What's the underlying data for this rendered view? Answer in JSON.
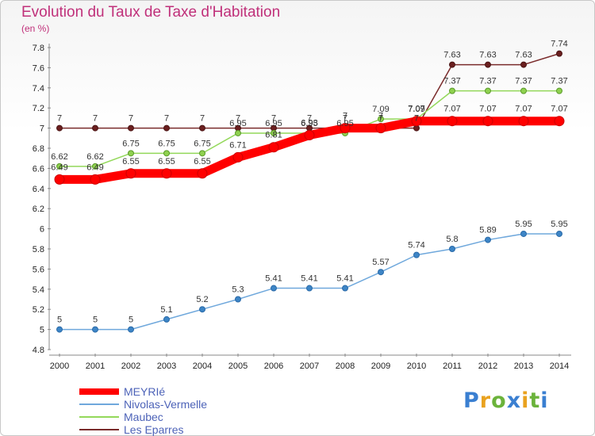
{
  "chart_data": {
    "type": "line",
    "title": "Evolution du Taux de Taxe d'Habitation",
    "unit": "(en %)",
    "x": [
      "2000",
      "2001",
      "2002",
      "2003",
      "2004",
      "2005",
      "2006",
      "2007",
      "2008",
      "2009",
      "2010",
      "2011",
      "2012",
      "2013",
      "2014"
    ],
    "ylim": [
      4.8,
      7.8
    ],
    "yticks": [
      "4.8",
      "5",
      "5.2",
      "5.4",
      "5.6",
      "5.8",
      "6",
      "6.2",
      "6.4",
      "6.6",
      "6.8",
      "7",
      "7.2",
      "7.4",
      "7.6",
      "7.8"
    ],
    "grid": false,
    "legend_position": "bottom-left",
    "series": [
      {
        "name": "MEYRIé",
        "color": "#ff0000",
        "values": [
          6.49,
          6.49,
          6.55,
          6.55,
          6.55,
          6.71,
          6.81,
          6.93,
          7.0,
          7.0,
          7.07,
          7.07,
          7.07,
          7.07,
          7.07
        ]
      },
      {
        "name": "Nivolas-Vermelle",
        "color": "#6fa8dc",
        "values": [
          5,
          5,
          5,
          5.1,
          5.2,
          5.3,
          5.41,
          5.41,
          5.41,
          5.57,
          5.74,
          5.8,
          5.89,
          5.95,
          5.95
        ]
      },
      {
        "name": "Maubec",
        "color": "#93d85a",
        "values": [
          6.62,
          6.62,
          6.75,
          6.75,
          6.75,
          6.95,
          6.95,
          6.95,
          6.95,
          7.09,
          7.09,
          7.37,
          7.37,
          7.37,
          7.37
        ]
      },
      {
        "name": "Les Eparres",
        "color": "#7a2b2b",
        "values": [
          7,
          7,
          7,
          7,
          7,
          7,
          7,
          7,
          7,
          7,
          7,
          7.63,
          7.63,
          7.63,
          7.74
        ]
      }
    ]
  },
  "logo": {
    "text": "Proxiti"
  }
}
